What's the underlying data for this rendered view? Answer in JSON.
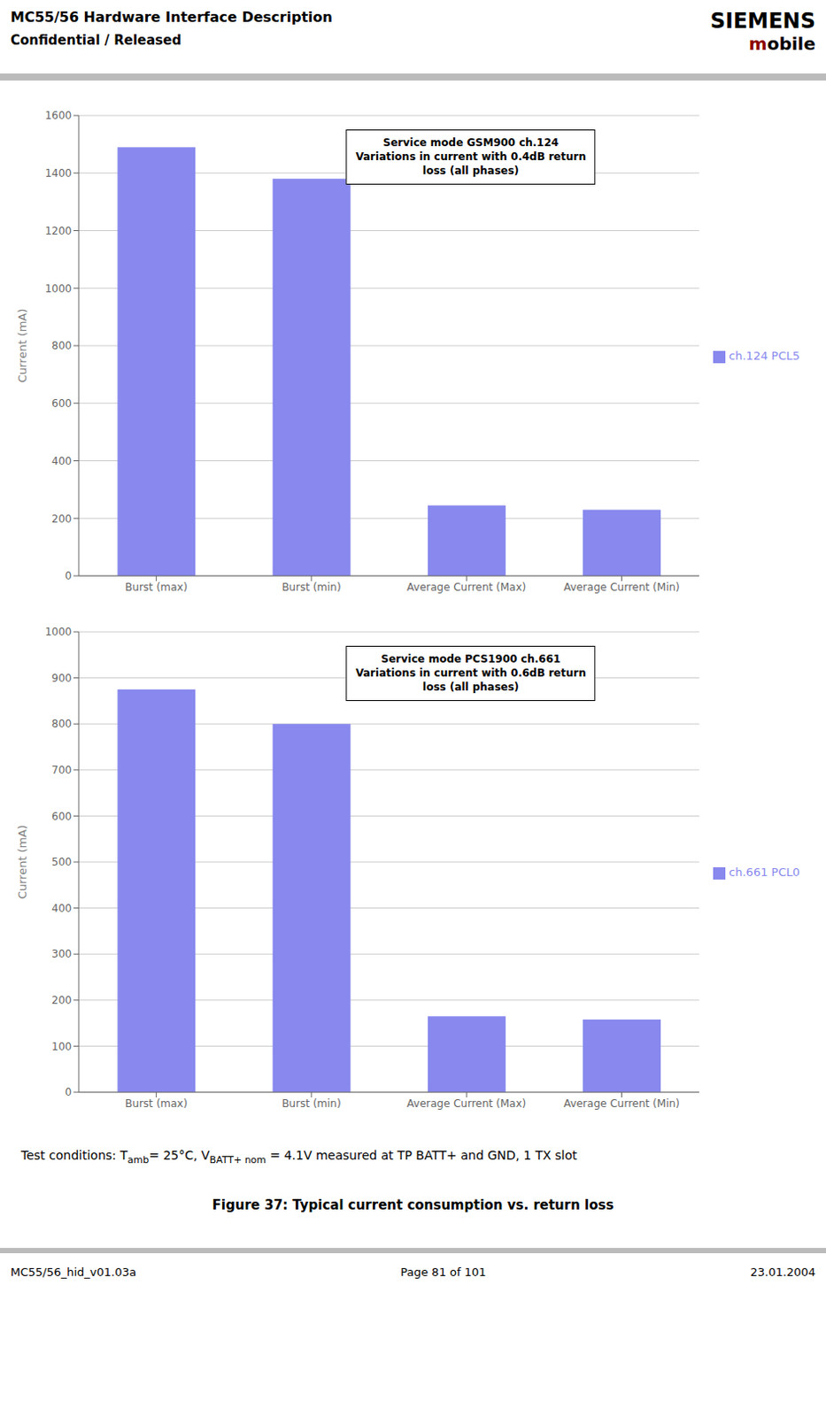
{
  "header": [
    "MC55/56 Hardware Interface Description",
    "Confidential / Released"
  ],
  "logo": "SIEMENS",
  "logo_sub": [
    {
      "text": "m",
      "color": "#8b0000"
    },
    {
      "text": "obile"
    }
  ],
  "chart_data": [
    {
      "type": "bar",
      "categories": [
        "Burst (max)",
        "Burst (min)",
        "Average Current (Max)",
        "Average Current (Min)"
      ],
      "series": [
        {
          "name": "ch.124 PCL5",
          "color": "#8888ee",
          "values": [
            1490,
            1380,
            245,
            230
          ]
        }
      ],
      "ylabel": "Current (mA)",
      "ylim": [
        0,
        1600
      ],
      "yticks": [
        0,
        200,
        400,
        600,
        800,
        1000,
        1200,
        1400,
        1600
      ],
      "grid": true,
      "legend": "right",
      "annotation": [
        "Service mode GSM900 ch.124",
        "Variations in current with 0.4dB return",
        "loss (all phases)"
      ]
    },
    {
      "type": "bar",
      "categories": [
        "Burst (max)",
        "Burst (min)",
        "Average Current (Max)",
        "Average Current (Min)"
      ],
      "series": [
        {
          "name": "ch.661 PCL0",
          "color": "#8888ee",
          "values": [
            875,
            800,
            165,
            158
          ]
        }
      ],
      "ylabel": "Current (mA)",
      "ylim": [
        0,
        1000
      ],
      "yticks": [
        0,
        100,
        200,
        300,
        400,
        500,
        600,
        700,
        800,
        900,
        1000
      ],
      "grid": true,
      "legend": "right",
      "annotation": [
        "Service mode PCS1900 ch.661",
        "Variations in current with 0.6dB return",
        "loss (all phases)"
      ]
    }
  ],
  "notes": [
    {
      "text": "Test conditions: T"
    },
    {
      "text": "amb",
      "sub": true
    },
    {
      "text": "= 25°C, V"
    },
    {
      "text": "BATT+ nom",
      "sub": true
    },
    {
      "text": " = 4.1V measured at TP BATT+ and GND, 1 TX slot"
    }
  ],
  "figure_caption": "Figure 37: Typical current consumption vs. return loss",
  "footer": [
    "MC55/56_hid_v01.03a",
    "Page 81 of 101",
    "23.01.2004"
  ]
}
